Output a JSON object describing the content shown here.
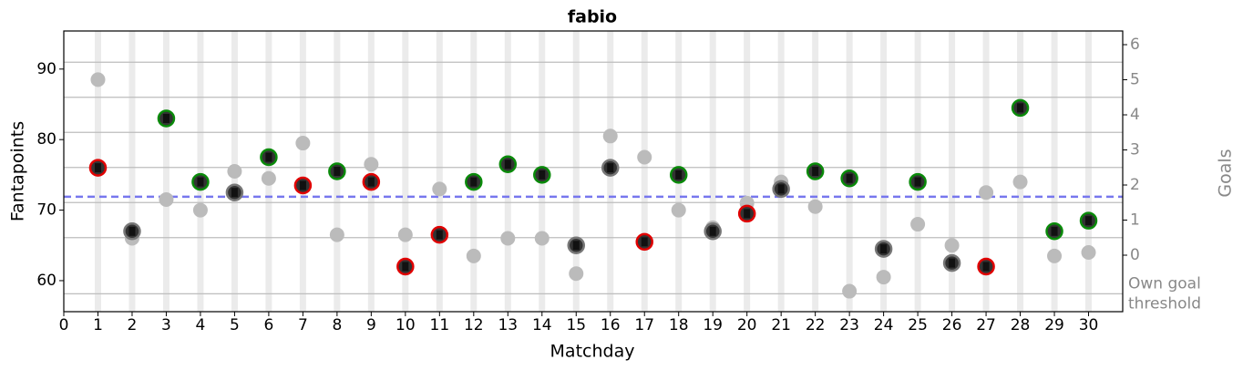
{
  "chart_data": {
    "type": "scatter",
    "title": "fabio",
    "x_label": "Matchday",
    "y_label": "Fantapoints",
    "y2_label": "Goals",
    "x": [
      1,
      2,
      3,
      4,
      5,
      6,
      7,
      8,
      9,
      10,
      11,
      12,
      13,
      14,
      15,
      16,
      17,
      18,
      19,
      20,
      21,
      22,
      23,
      24,
      25,
      26,
      27,
      28,
      29,
      30
    ],
    "series": [
      {
        "color": "#111111",
        "edge_colors": [
          "#e00000",
          "#777777",
          "#0a8a0a",
          "#0a8a0a",
          "#777777",
          "#0a8a0a",
          "#e00000",
          "#0a8a0a",
          "#e00000",
          "#e00000",
          "#e00000",
          "#0a8a0a",
          "#0a8a0a",
          "#0a8a0a",
          "#777777",
          "#777777",
          "#e00000",
          "#0a8a0a",
          "#777777",
          "#e00000",
          "#777777",
          "#0a8a0a",
          "#0a8a0a",
          "#777777",
          "#0a8a0a",
          "#777777",
          "#e00000",
          "#0a8a0a",
          "#0a8a0a",
          "#0a8a0a"
        ],
        "values": [
          76,
          67,
          83,
          74,
          72.5,
          77.5,
          73.5,
          75.5,
          74,
          62,
          66.5,
          74,
          76.5,
          75,
          65,
          76,
          65.5,
          75,
          67,
          69.5,
          73,
          75.5,
          74.5,
          64.5,
          74,
          62.5,
          62,
          84.5,
          67,
          68.5
        ]
      },
      {
        "color": "#bbbbbb",
        "values": [
          88.5,
          66,
          71.5,
          70,
          75.5,
          74.5,
          79.5,
          66.5,
          76.5,
          66.5,
          73,
          63.5,
          66,
          66,
          61,
          80.5,
          77.5,
          70,
          67.5,
          71,
          74,
          70.5,
          58.5,
          60.5,
          68,
          65,
          72.5,
          74,
          63.5,
          64
        ]
      }
    ],
    "xlim": [
      0,
      31
    ],
    "xticks": [
      0,
      1,
      2,
      3,
      4,
      5,
      6,
      7,
      8,
      9,
      10,
      11,
      12,
      13,
      14,
      15,
      16,
      17,
      18,
      19,
      20,
      21,
      22,
      23,
      24,
      25,
      26,
      27,
      28,
      29,
      30
    ],
    "ylim": [
      55.6,
      95.4
    ],
    "yticks": [
      60,
      70,
      80,
      90
    ],
    "y2lim": [
      -1.61,
      6.39
    ],
    "y2ticks": [
      {
        "value": -1.1,
        "label": "Own goal threshold"
      },
      0,
      1,
      2,
      3,
      4,
      5,
      6
    ],
    "y2_gridlines": [
      0.5,
      1.5,
      2.5,
      3.5,
      4.5,
      5.5
    ],
    "hline": {
      "value": 71.9,
      "color": "#7777ee"
    }
  }
}
